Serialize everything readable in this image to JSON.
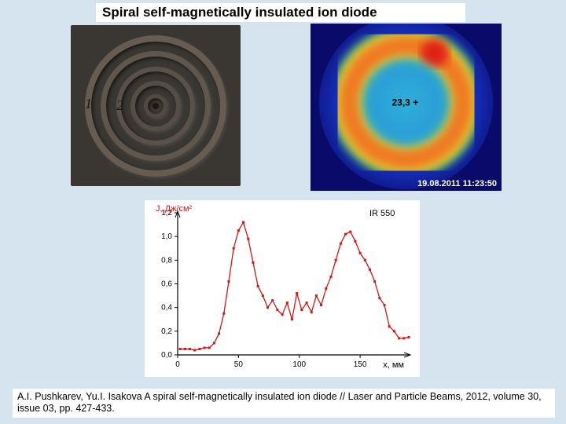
{
  "title": "Spiral self-magnetically insulated ion diode",
  "photo": {
    "label1": "1",
    "label2": "2"
  },
  "thermal": {
    "type": "heatmap",
    "timestamp": "19.08.2011 11:23:50",
    "center_marker": "23,3 +",
    "colors": {
      "background": "#0a0a6a",
      "cold": "#1a3fdc",
      "cool": "#2fb0d8",
      "mid": "#34d070",
      "warm": "#f3e02a",
      "hot": "#f07020",
      "hottest": "#e02018"
    },
    "ring_outer_r_pct": 42,
    "ring_inner_r_pct": 26,
    "hotspot_angle_deg": -60
  },
  "chart": {
    "type": "line",
    "title_right": "IR 550",
    "ylabel": "J, Дж/см²",
    "xlabel": "x, мм",
    "ylim": [
      0,
      1.2
    ],
    "yticks": [
      0.0,
      0.2,
      0.4,
      0.6,
      0.8,
      1.0,
      1.2
    ],
    "xlim": [
      0,
      190
    ],
    "xticks": [
      0,
      50,
      100,
      150
    ],
    "line_color": "#d01818",
    "marker": "square",
    "marker_size": 3,
    "axis_color": "#000000",
    "background_color": "#ffffff",
    "label_fontsize": 11,
    "tick_fontsize": 10,
    "data": [
      [
        2,
        0.05
      ],
      [
        6,
        0.05
      ],
      [
        10,
        0.05
      ],
      [
        14,
        0.04
      ],
      [
        18,
        0.05
      ],
      [
        22,
        0.06
      ],
      [
        26,
        0.06
      ],
      [
        30,
        0.1
      ],
      [
        34,
        0.18
      ],
      [
        38,
        0.35
      ],
      [
        42,
        0.62
      ],
      [
        46,
        0.9
      ],
      [
        50,
        1.05
      ],
      [
        54,
        1.12
      ],
      [
        58,
        0.98
      ],
      [
        62,
        0.78
      ],
      [
        66,
        0.58
      ],
      [
        70,
        0.5
      ],
      [
        74,
        0.4
      ],
      [
        78,
        0.46
      ],
      [
        82,
        0.38
      ],
      [
        86,
        0.34
      ],
      [
        90,
        0.44
      ],
      [
        94,
        0.3
      ],
      [
        98,
        0.52
      ],
      [
        102,
        0.38
      ],
      [
        106,
        0.44
      ],
      [
        110,
        0.36
      ],
      [
        114,
        0.5
      ],
      [
        118,
        0.42
      ],
      [
        122,
        0.56
      ],
      [
        126,
        0.66
      ],
      [
        130,
        0.8
      ],
      [
        134,
        0.94
      ],
      [
        138,
        1.02
      ],
      [
        142,
        1.04
      ],
      [
        146,
        0.96
      ],
      [
        150,
        0.86
      ],
      [
        154,
        0.8
      ],
      [
        158,
        0.72
      ],
      [
        162,
        0.62
      ],
      [
        166,
        0.48
      ],
      [
        170,
        0.42
      ],
      [
        174,
        0.24
      ],
      [
        178,
        0.2
      ],
      [
        182,
        0.14
      ],
      [
        186,
        0.14
      ],
      [
        190,
        0.15
      ]
    ]
  },
  "citation": "A.I. Pushkarev, Yu.I. Isakova A spiral self-magnetically insulated ion diode // Laser and Particle Beams, 2012, volume 30, issue 03, pp. 427-433."
}
